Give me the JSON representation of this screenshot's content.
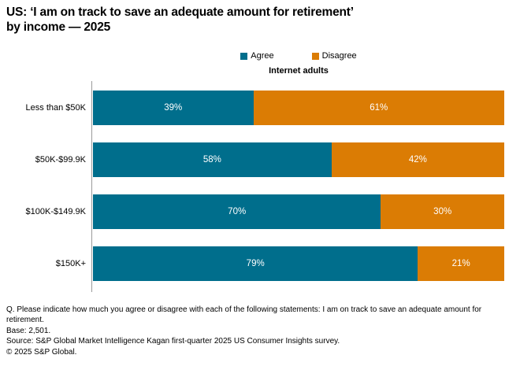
{
  "title": {
    "line1": "US: ‘I am on track to save an adequate amount for retirement’",
    "line2": "by income — 2025"
  },
  "subtitle": "Internet adults",
  "legend": {
    "items": [
      {
        "label": "Agree",
        "color": "#006E8C"
      },
      {
        "label": "Disagree",
        "color": "#DB7C04"
      }
    ]
  },
  "chart_data": {
    "type": "bar",
    "orientation": "horizontal",
    "stacked": true,
    "title": "Internet adults",
    "categories": [
      "Less than $50K",
      "$50K-$99.9K",
      "$100K-$149.9K",
      "$150K+"
    ],
    "series": [
      {
        "name": "Agree",
        "color": "#006E8C",
        "values": [
          39,
          58,
          70,
          79
        ]
      },
      {
        "name": "Disagree",
        "color": "#DB7C04",
        "values": [
          61,
          42,
          30,
          21
        ]
      }
    ],
    "value_suffix": "%",
    "xlim": [
      0,
      100
    ],
    "grid": false,
    "legend_position": "top",
    "value_labels_shown": true
  },
  "footer": {
    "lines": [
      "Q. Please indicate how much you agree or disagree with each of the following statements: I am on track to save an adequate amount for retirement.",
      "Base: 2,501.",
      "Source: S&P Global Market Intelligence Kagan first-quarter 2025 US Consumer Insights survey.",
      "© 2025 S&P Global."
    ]
  },
  "colors": {
    "agree": "#006E8C",
    "disagree": "#DB7C04",
    "axis_line": "#9A9A9A",
    "value_label_text": "#FFFFFF",
    "text": "#000000"
  }
}
